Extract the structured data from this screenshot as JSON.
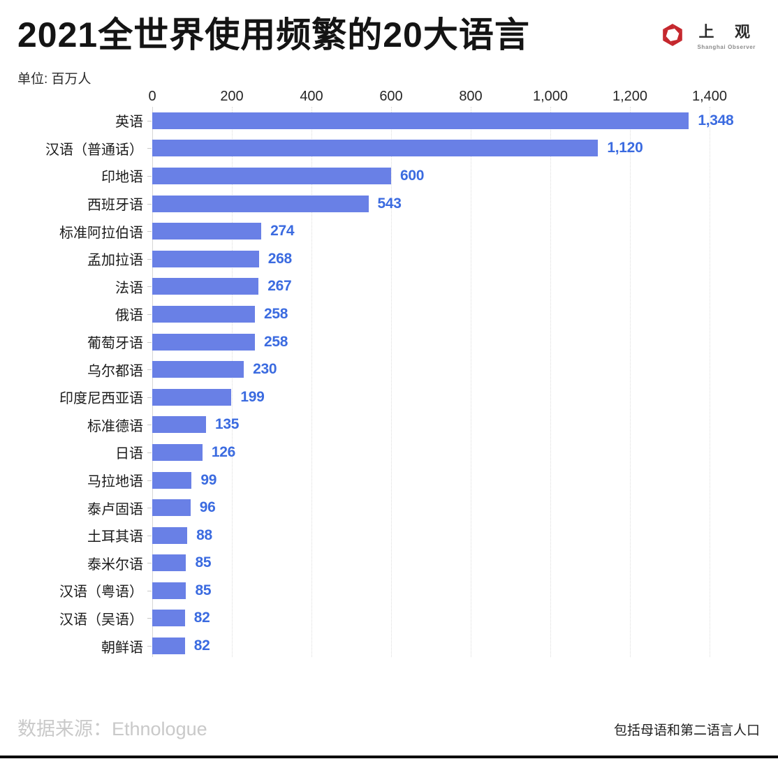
{
  "header": {
    "title": "2021全世界使用频繁的20大语言",
    "logo": {
      "cn": "上 观",
      "en": "Shanghai Observer",
      "brand_color": "#C5272D"
    }
  },
  "unit_label": "单位: 百万人",
  "footer": {
    "source": "数据来源：Ethnologue",
    "note": "包括母语和第二语言人口"
  },
  "chart_data": {
    "type": "bar",
    "orientation": "horizontal",
    "title": "2021全世界使用频繁的20大语言",
    "unit": "百万人",
    "categories": [
      "英语",
      "汉语（普通话）",
      "印地语",
      "西班牙语",
      "标准阿拉伯语",
      "孟加拉语",
      "法语",
      "俄语",
      "葡萄牙语",
      "乌尔都语",
      "印度尼西亚语",
      "标准德语",
      "日语",
      "马拉地语",
      "泰卢固语",
      "土耳其语",
      "泰米尔语",
      "汉语（粤语）",
      "汉语（吴语）",
      "朝鲜语"
    ],
    "values": [
      1348,
      1120,
      600,
      543,
      274,
      268,
      267,
      258,
      258,
      230,
      199,
      135,
      126,
      99,
      96,
      88,
      85,
      85,
      82,
      82
    ],
    "value_labels": [
      "1,348",
      "1,120",
      "600",
      "543",
      "274",
      "268",
      "267",
      "258",
      "258",
      "230",
      "199",
      "135",
      "126",
      "99",
      "96",
      "88",
      "85",
      "85",
      "82",
      "82"
    ],
    "x_ticks": [
      "0",
      "200",
      "400",
      "600",
      "800",
      "1,000",
      "1,200",
      "1,400"
    ],
    "x_tick_values": [
      0,
      200,
      400,
      600,
      800,
      1000,
      1200,
      1400
    ],
    "xlim": [
      0,
      1400
    ],
    "grid": "dotted-vertical",
    "legend": "none",
    "bar_color": "#6980E6",
    "value_color": "#3B6BE0"
  }
}
